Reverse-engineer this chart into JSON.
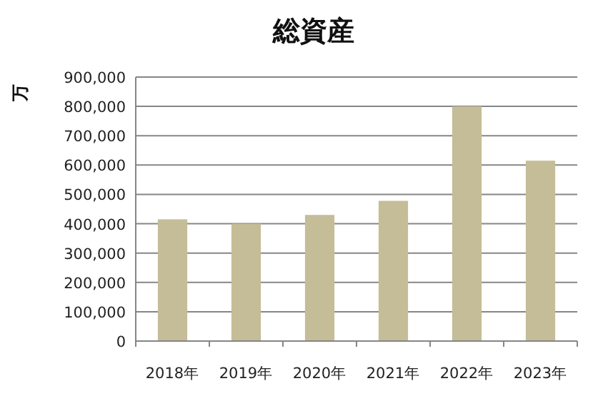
{
  "chart_data": {
    "type": "bar",
    "title": "総資産",
    "ylabel": "万",
    "categories": [
      "2018年",
      "2019年",
      "2020年",
      "2021年",
      "2022年",
      "2023年"
    ],
    "values": [
      415000,
      400000,
      430000,
      478000,
      800000,
      615000
    ],
    "color": "#c4bd97",
    "ylim": [
      0,
      900000
    ],
    "yticks": [
      0,
      {
        "value": 100000,
        "label": "100,000"
      },
      {
        "value": 200000,
        "label": "200,000"
      },
      {
        "value": 300000,
        "label": "300,000"
      },
      {
        "value": 400000,
        "label": "400,000"
      },
      {
        "value": 500000,
        "label": "500,000"
      },
      {
        "value": 600000,
        "label": "600,000"
      },
      {
        "value": 700000,
        "label": "700,000"
      },
      {
        "value": 800000,
        "label": "800,000"
      },
      {
        "value": 900000,
        "label": "900,000"
      }
    ],
    "grid": "y"
  }
}
